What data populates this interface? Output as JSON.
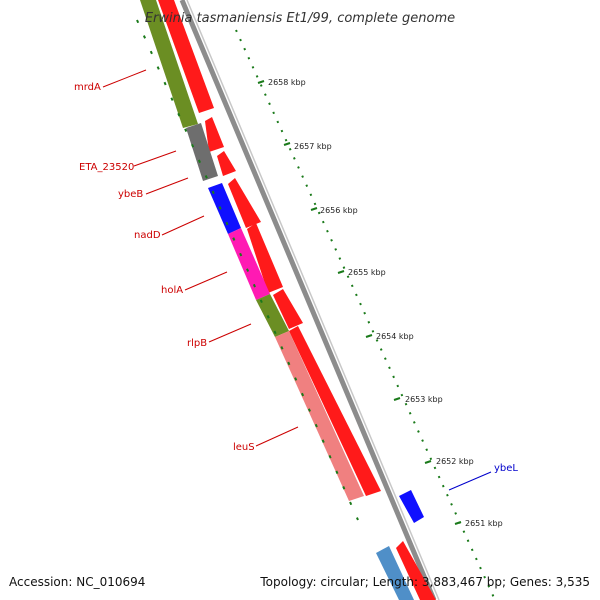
{
  "title": "Erwinia tasmaniensis Et1/99, complete genome",
  "footer": {
    "accession": "Accession: NC_010694",
    "topology": "Topology: circular; Length: 3,883,467 bp; Genes: 3,535"
  },
  "colors": {
    "backbone": "#8c8c8c",
    "feature_red": "#ff1a1a",
    "tick_green": "#1a7a1a",
    "label_red": "#cc0000",
    "label_blue": "#0000cc",
    "olive": "#6b8e23",
    "gray": "#6e6e6e",
    "blue": "#1010ff",
    "magenta": "#ff1ab3",
    "salmon": "#f08080",
    "steel": "#4f8fc8"
  },
  "scale_labels": [
    {
      "text": "2658 kbp"
    },
    {
      "text": "2657 kbp"
    },
    {
      "text": "2656 kbp"
    },
    {
      "text": "2655 kbp"
    },
    {
      "text": "2654 kbp"
    },
    {
      "text": "2653 kbp"
    },
    {
      "text": "2652 kbp"
    },
    {
      "text": "2651 kbp"
    }
  ],
  "gene_labels": [
    {
      "text": "mrdA",
      "color": "#cc0000"
    },
    {
      "text": "ETA_23520",
      "color": "#cc0000"
    },
    {
      "text": "ybeB",
      "color": "#cc0000"
    },
    {
      "text": "nadD",
      "color": "#cc0000"
    },
    {
      "text": "holA",
      "color": "#cc0000"
    },
    {
      "text": "rlpB",
      "color": "#cc0000"
    },
    {
      "text": "leuS",
      "color": "#cc0000"
    },
    {
      "text": "ybeL",
      "color": "#0000cc"
    }
  ]
}
